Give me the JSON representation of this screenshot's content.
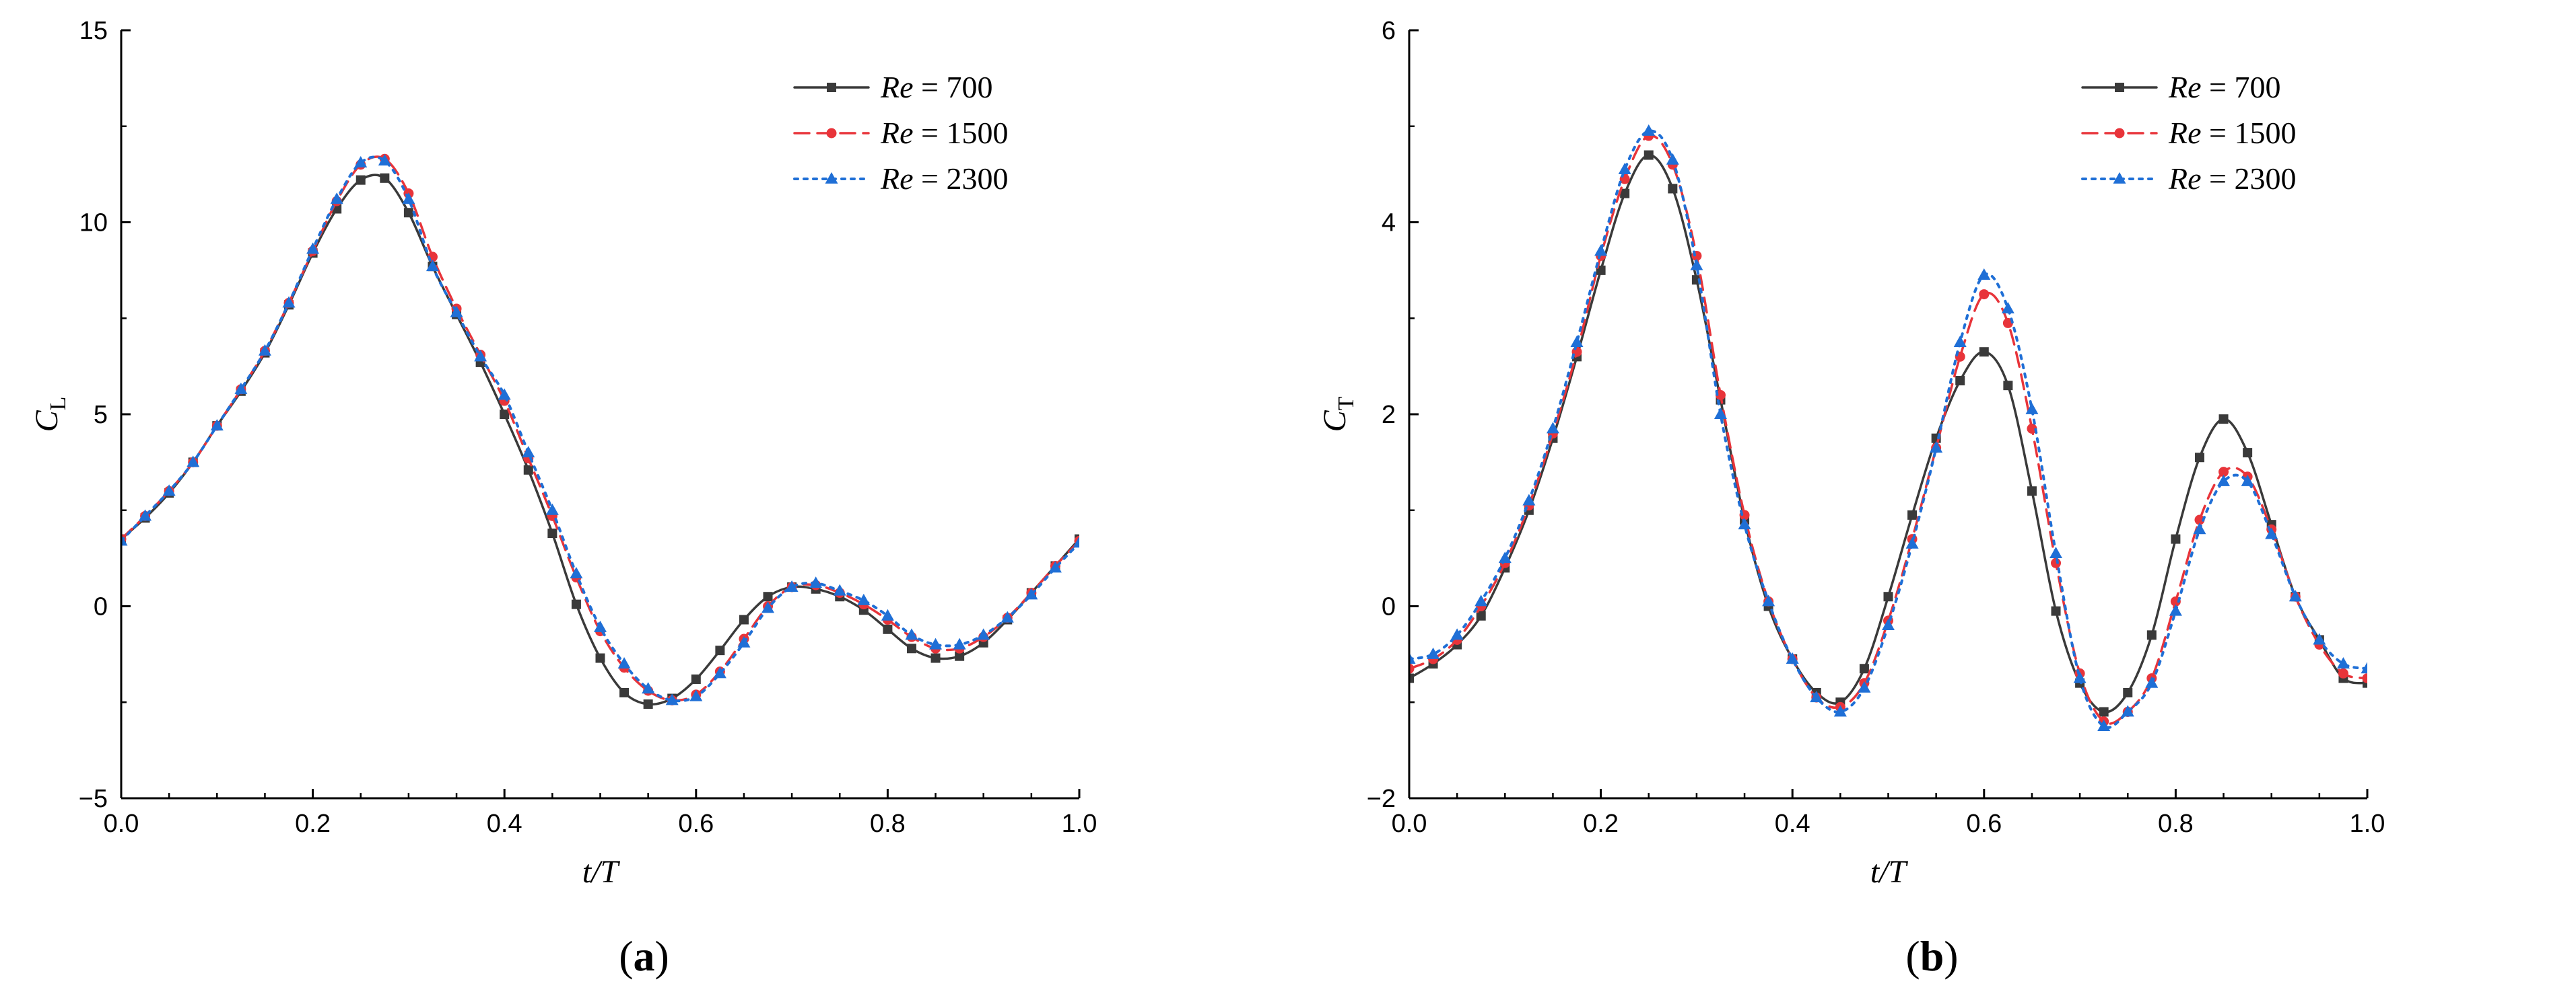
{
  "colors": {
    "re700": "#3a3a3a",
    "re1500": "#e8343a",
    "re2300": "#1f6fd6"
  },
  "figure_labels": [
    "a",
    "b"
  ],
  "chart_data": [
    {
      "type": "line",
      "panel": "a",
      "xlabel": "t/T",
      "ylabel_main": "C",
      "ylabel_sub": "L",
      "xlim": [
        0,
        1.0
      ],
      "ylim": [
        -5,
        15
      ],
      "xticks": [
        0.0,
        0.2,
        0.4,
        0.6,
        0.8,
        1.0
      ],
      "xtick_labels": [
        "0.0",
        "0.2",
        "0.4",
        "0.6",
        "0.8",
        "1.0"
      ],
      "yticks": [
        -5,
        0,
        5,
        10,
        15
      ],
      "ytick_labels": [
        "−5",
        "0",
        "5",
        "10",
        "15"
      ],
      "legend_position": "top-right",
      "series": [
        {
          "name_var": "Re",
          "name_rest": " = 700",
          "color": "#3a3a3a",
          "dash": "solid",
          "marker": "square",
          "points": [
            [
              0,
              1.75
            ],
            [
              0.025,
              2.3
            ],
            [
              0.05,
              2.95
            ],
            [
              0.075,
              3.75
            ],
            [
              0.1,
              4.7
            ],
            [
              0.125,
              5.6
            ],
            [
              0.15,
              6.6
            ],
            [
              0.175,
              7.85
            ],
            [
              0.2,
              9.2
            ],
            [
              0.225,
              10.35
            ],
            [
              0.25,
              11.1
            ],
            [
              0.275,
              11.15
            ],
            [
              0.3,
              10.25
            ],
            [
              0.325,
              8.85
            ],
            [
              0.35,
              7.6
            ],
            [
              0.375,
              6.35
            ],
            [
              0.4,
              5.0
            ],
            [
              0.425,
              3.55
            ],
            [
              0.45,
              1.9
            ],
            [
              0.475,
              0.05
            ],
            [
              0.5,
              -1.35
            ],
            [
              0.525,
              -2.25
            ],
            [
              0.55,
              -2.55
            ],
            [
              0.575,
              -2.4
            ],
            [
              0.6,
              -1.9
            ],
            [
              0.625,
              -1.15
            ],
            [
              0.65,
              -0.35
            ],
            [
              0.675,
              0.25
            ],
            [
              0.7,
              0.5
            ],
            [
              0.725,
              0.45
            ],
            [
              0.75,
              0.25
            ],
            [
              0.775,
              -0.1
            ],
            [
              0.8,
              -0.6
            ],
            [
              0.825,
              -1.1
            ],
            [
              0.85,
              -1.35
            ],
            [
              0.875,
              -1.3
            ],
            [
              0.9,
              -0.95
            ],
            [
              0.925,
              -0.35
            ],
            [
              0.95,
              0.35
            ],
            [
              0.975,
              1.05
            ],
            [
              1.0,
              1.75
            ]
          ]
        },
        {
          "name_var": "Re",
          "name_rest": " = 1500",
          "color": "#e8343a",
          "dash": "dashed",
          "marker": "circle",
          "points": [
            [
              0,
              1.75
            ],
            [
              0.025,
              2.35
            ],
            [
              0.05,
              3.0
            ],
            [
              0.075,
              3.75
            ],
            [
              0.1,
              4.7
            ],
            [
              0.125,
              5.65
            ],
            [
              0.15,
              6.65
            ],
            [
              0.175,
              7.9
            ],
            [
              0.2,
              9.25
            ],
            [
              0.225,
              10.55
            ],
            [
              0.25,
              11.5
            ],
            [
              0.275,
              11.65
            ],
            [
              0.3,
              10.75
            ],
            [
              0.325,
              9.1
            ],
            [
              0.35,
              7.75
            ],
            [
              0.375,
              6.55
            ],
            [
              0.4,
              5.35
            ],
            [
              0.425,
              3.85
            ],
            [
              0.45,
              2.35
            ],
            [
              0.475,
              0.75
            ],
            [
              0.5,
              -0.65
            ],
            [
              0.525,
              -1.6
            ],
            [
              0.55,
              -2.2
            ],
            [
              0.575,
              -2.45
            ],
            [
              0.6,
              -2.3
            ],
            [
              0.625,
              -1.7
            ],
            [
              0.65,
              -0.85
            ],
            [
              0.675,
              0.0
            ],
            [
              0.7,
              0.5
            ],
            [
              0.725,
              0.55
            ],
            [
              0.75,
              0.35
            ],
            [
              0.775,
              0.05
            ],
            [
              0.8,
              -0.35
            ],
            [
              0.825,
              -0.8
            ],
            [
              0.85,
              -1.1
            ],
            [
              0.875,
              -1.1
            ],
            [
              0.9,
              -0.8
            ],
            [
              0.925,
              -0.3
            ],
            [
              0.95,
              0.35
            ],
            [
              0.975,
              1.05
            ],
            [
              1.0,
              1.7
            ]
          ]
        },
        {
          "name_var": "Re",
          "name_rest": " = 2300",
          "color": "#1f6fd6",
          "dash": "dotted",
          "marker": "triangle",
          "points": [
            [
              0,
              1.7
            ],
            [
              0.025,
              2.35
            ],
            [
              0.05,
              3.0
            ],
            [
              0.075,
              3.75
            ],
            [
              0.1,
              4.7
            ],
            [
              0.125,
              5.65
            ],
            [
              0.15,
              6.65
            ],
            [
              0.175,
              7.9
            ],
            [
              0.2,
              9.3
            ],
            [
              0.225,
              10.6
            ],
            [
              0.25,
              11.55
            ],
            [
              0.275,
              11.6
            ],
            [
              0.3,
              10.6
            ],
            [
              0.325,
              8.85
            ],
            [
              0.35,
              7.65
            ],
            [
              0.375,
              6.5
            ],
            [
              0.4,
              5.5
            ],
            [
              0.425,
              4.0
            ],
            [
              0.45,
              2.5
            ],
            [
              0.475,
              0.85
            ],
            [
              0.5,
              -0.55
            ],
            [
              0.525,
              -1.5
            ],
            [
              0.55,
              -2.15
            ],
            [
              0.575,
              -2.45
            ],
            [
              0.6,
              -2.35
            ],
            [
              0.625,
              -1.75
            ],
            [
              0.65,
              -0.95
            ],
            [
              0.675,
              -0.05
            ],
            [
              0.7,
              0.5
            ],
            [
              0.725,
              0.6
            ],
            [
              0.75,
              0.4
            ],
            [
              0.775,
              0.15
            ],
            [
              0.8,
              -0.25
            ],
            [
              0.825,
              -0.75
            ],
            [
              0.85,
              -1.0
            ],
            [
              0.875,
              -1.0
            ],
            [
              0.9,
              -0.75
            ],
            [
              0.925,
              -0.3
            ],
            [
              0.95,
              0.3
            ],
            [
              0.975,
              1.0
            ],
            [
              1.0,
              1.65
            ]
          ]
        }
      ]
    },
    {
      "type": "line",
      "panel": "b",
      "xlabel": "t/T",
      "ylabel_main": "C",
      "ylabel_sub": "T",
      "xlim": [
        0,
        1.0
      ],
      "ylim": [
        -2,
        6
      ],
      "xticks": [
        0.0,
        0.2,
        0.4,
        0.6,
        0.8,
        1.0
      ],
      "xtick_labels": [
        "0.0",
        "0.2",
        "0.4",
        "0.6",
        "0.8",
        "1.0"
      ],
      "yticks": [
        -2,
        0,
        2,
        4,
        6
      ],
      "ytick_labels": [
        "−2",
        "0",
        "2",
        "4",
        "6"
      ],
      "legend_position": "top-right",
      "series": [
        {
          "name_var": "Re",
          "name_rest": " = 700",
          "color": "#3a3a3a",
          "dash": "solid",
          "marker": "square",
          "points": [
            [
              0,
              -0.75
            ],
            [
              0.025,
              -0.6
            ],
            [
              0.05,
              -0.4
            ],
            [
              0.075,
              -0.1
            ],
            [
              0.1,
              0.4
            ],
            [
              0.125,
              1.0
            ],
            [
              0.15,
              1.75
            ],
            [
              0.175,
              2.6
            ],
            [
              0.2,
              3.5
            ],
            [
              0.225,
              4.3
            ],
            [
              0.25,
              4.7
            ],
            [
              0.275,
              4.35
            ],
            [
              0.3,
              3.4
            ],
            [
              0.325,
              2.15
            ],
            [
              0.35,
              0.9
            ],
            [
              0.375,
              0.0
            ],
            [
              0.4,
              -0.55
            ],
            [
              0.425,
              -0.9
            ],
            [
              0.45,
              -1.0
            ],
            [
              0.475,
              -0.65
            ],
            [
              0.5,
              0.1
            ],
            [
              0.525,
              0.95
            ],
            [
              0.55,
              1.75
            ],
            [
              0.575,
              2.35
            ],
            [
              0.6,
              2.65
            ],
            [
              0.625,
              2.3
            ],
            [
              0.65,
              1.2
            ],
            [
              0.675,
              -0.05
            ],
            [
              0.7,
              -0.8
            ],
            [
              0.725,
              -1.1
            ],
            [
              0.75,
              -0.9
            ],
            [
              0.775,
              -0.3
            ],
            [
              0.8,
              0.7
            ],
            [
              0.825,
              1.55
            ],
            [
              0.85,
              1.95
            ],
            [
              0.875,
              1.6
            ],
            [
              0.9,
              0.85
            ],
            [
              0.925,
              0.1
            ],
            [
              0.95,
              -0.35
            ],
            [
              0.975,
              -0.75
            ],
            [
              1.0,
              -0.8
            ]
          ]
        },
        {
          "name_var": "Re",
          "name_rest": " = 1500",
          "color": "#e8343a",
          "dash": "dashed",
          "marker": "circle",
          "points": [
            [
              0,
              -0.65
            ],
            [
              0.025,
              -0.55
            ],
            [
              0.05,
              -0.35
            ],
            [
              0.075,
              0.0
            ],
            [
              0.1,
              0.45
            ],
            [
              0.125,
              1.05
            ],
            [
              0.15,
              1.8
            ],
            [
              0.175,
              2.65
            ],
            [
              0.2,
              3.65
            ],
            [
              0.225,
              4.45
            ],
            [
              0.25,
              4.9
            ],
            [
              0.275,
              4.6
            ],
            [
              0.3,
              3.65
            ],
            [
              0.325,
              2.2
            ],
            [
              0.35,
              0.95
            ],
            [
              0.375,
              0.05
            ],
            [
              0.4,
              -0.55
            ],
            [
              0.425,
              -0.95
            ],
            [
              0.45,
              -1.05
            ],
            [
              0.475,
              -0.8
            ],
            [
              0.5,
              -0.15
            ],
            [
              0.525,
              0.7
            ],
            [
              0.55,
              1.65
            ],
            [
              0.575,
              2.6
            ],
            [
              0.6,
              3.25
            ],
            [
              0.625,
              2.95
            ],
            [
              0.65,
              1.85
            ],
            [
              0.675,
              0.45
            ],
            [
              0.7,
              -0.7
            ],
            [
              0.725,
              -1.2
            ],
            [
              0.75,
              -1.1
            ],
            [
              0.775,
              -0.75
            ],
            [
              0.8,
              0.05
            ],
            [
              0.825,
              0.9
            ],
            [
              0.85,
              1.4
            ],
            [
              0.875,
              1.35
            ],
            [
              0.9,
              0.8
            ],
            [
              0.925,
              0.1
            ],
            [
              0.95,
              -0.4
            ],
            [
              0.975,
              -0.7
            ],
            [
              1.0,
              -0.75
            ]
          ]
        },
        {
          "name_var": "Re",
          "name_rest": " = 2300",
          "color": "#1f6fd6",
          "dash": "dotted",
          "marker": "triangle",
          "points": [
            [
              0,
              -0.55
            ],
            [
              0.025,
              -0.5
            ],
            [
              0.05,
              -0.3
            ],
            [
              0.075,
              0.05
            ],
            [
              0.1,
              0.5
            ],
            [
              0.125,
              1.1
            ],
            [
              0.15,
              1.85
            ],
            [
              0.175,
              2.75
            ],
            [
              0.2,
              3.7
            ],
            [
              0.225,
              4.55
            ],
            [
              0.25,
              4.95
            ],
            [
              0.275,
              4.65
            ],
            [
              0.3,
              3.55
            ],
            [
              0.325,
              2.0
            ],
            [
              0.35,
              0.85
            ],
            [
              0.375,
              0.05
            ],
            [
              0.4,
              -0.55
            ],
            [
              0.425,
              -0.95
            ],
            [
              0.45,
              -1.1
            ],
            [
              0.475,
              -0.85
            ],
            [
              0.5,
              -0.2
            ],
            [
              0.525,
              0.65
            ],
            [
              0.55,
              1.65
            ],
            [
              0.575,
              2.75
            ],
            [
              0.6,
              3.45
            ],
            [
              0.625,
              3.1
            ],
            [
              0.65,
              2.05
            ],
            [
              0.675,
              0.55
            ],
            [
              0.7,
              -0.75
            ],
            [
              0.725,
              -1.25
            ],
            [
              0.75,
              -1.1
            ],
            [
              0.775,
              -0.8
            ],
            [
              0.8,
              -0.05
            ],
            [
              0.825,
              0.8
            ],
            [
              0.85,
              1.3
            ],
            [
              0.875,
              1.3
            ],
            [
              0.9,
              0.75
            ],
            [
              0.925,
              0.1
            ],
            [
              0.95,
              -0.35
            ],
            [
              0.975,
              -0.6
            ],
            [
              1.0,
              -0.65
            ]
          ]
        }
      ]
    }
  ]
}
